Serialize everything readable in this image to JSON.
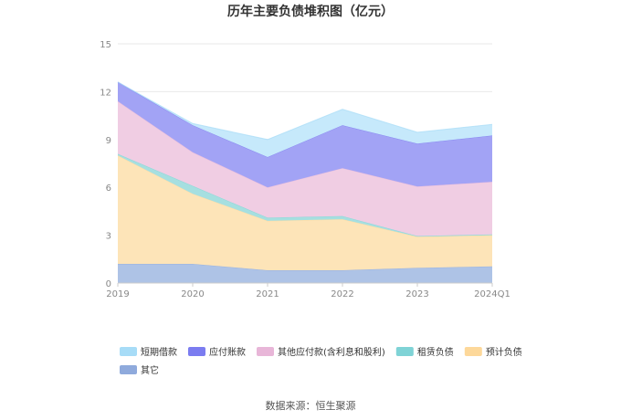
{
  "chart_data": {
    "type": "area",
    "stacked": true,
    "title": "历年主要负债堆积图（亿元）",
    "categories": [
      "2019",
      "2020",
      "2021",
      "2022",
      "2023",
      "2024Q1"
    ],
    "ylim": [
      0,
      15
    ],
    "yticks": [
      "0",
      "3",
      "6",
      "9",
      "12",
      "15"
    ],
    "grid": true,
    "legend_position": "bottom",
    "series": [
      {
        "name": "其它",
        "color": "#aec3e6",
        "legend_color": "#8faadc",
        "values": [
          1.2,
          1.2,
          0.8,
          0.8,
          0.95,
          1.05
        ]
      },
      {
        "name": "预计负债",
        "color": "#fde4b8",
        "legend_color": "#fdd89a",
        "values": [
          6.8,
          4.4,
          3.1,
          3.2,
          1.95,
          1.95
        ]
      },
      {
        "name": "租赁负债",
        "color": "#a6dfe0",
        "legend_color": "#7fd3d6",
        "values": [
          0.1,
          0.5,
          0.2,
          0.2,
          0.05,
          0.05
        ]
      },
      {
        "name": "其他应付款(含利息和股利)",
        "color": "#f0cde3",
        "legend_color": "#e8b6d8",
        "values": [
          3.3,
          2.1,
          1.9,
          3.0,
          3.1,
          3.3
        ]
      },
      {
        "name": "应付账款",
        "color": "#a2a3f5",
        "legend_color": "#7b7cf0",
        "values": [
          1.2,
          1.7,
          1.9,
          2.7,
          2.7,
          2.9
        ]
      },
      {
        "name": "短期借款",
        "color": "#c6e9fb",
        "legend_color": "#a7dcf7",
        "values": [
          0.0,
          0.1,
          1.1,
          1.0,
          0.7,
          0.7
        ]
      }
    ],
    "legend_order": [
      "短期借款",
      "应付账款",
      "其他应付款(含利息和股利)",
      "租赁负债",
      "预计负债",
      "其它"
    ]
  },
  "source": "数据来源：恒生聚源"
}
